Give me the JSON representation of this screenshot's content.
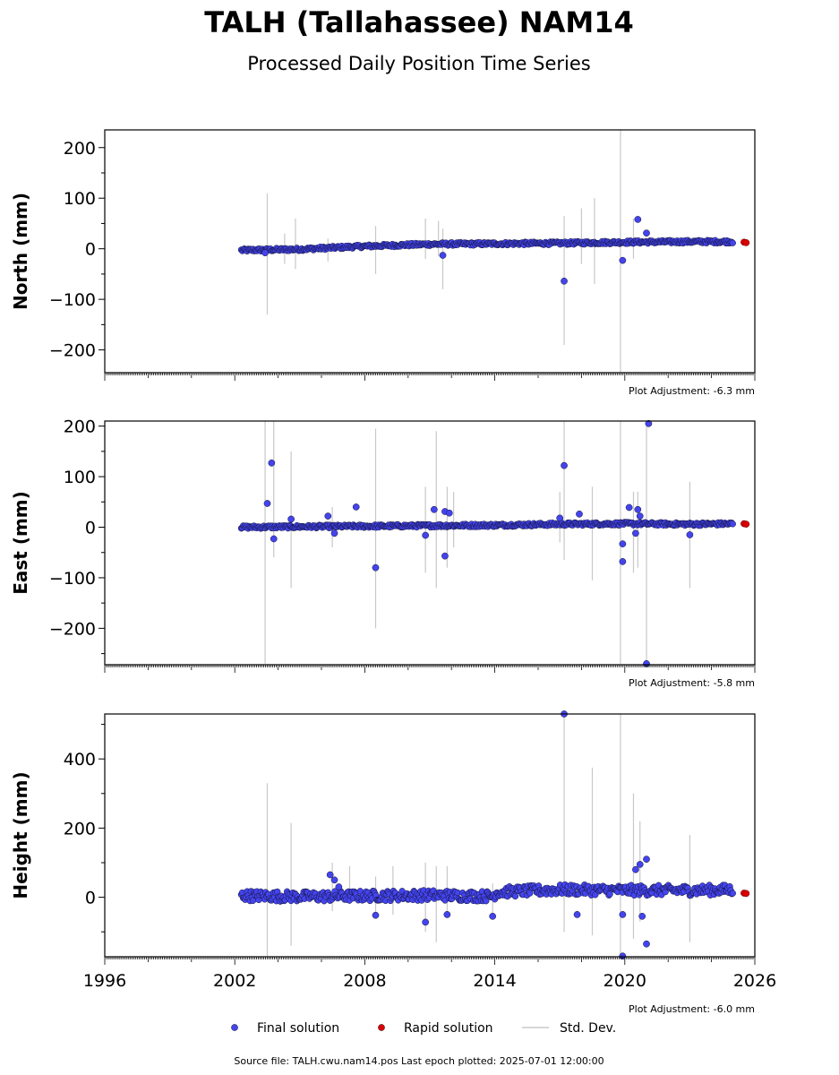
{
  "title": "TALH (Tallahassee) NAM14",
  "subtitle": "Processed Daily Position Time Series",
  "footer": "Source file: TALH.cwu.nam14.pos  Last epoch plotted: 2025-07-01 12:00:00",
  "legend": {
    "placement": "bottom-center",
    "items": [
      {
        "label": "Final solution",
        "color": "#4444ee",
        "kind": "dot"
      },
      {
        "label": "Rapid solution",
        "color": "#dd0000",
        "kind": "dot"
      },
      {
        "label": "Std. Dev.",
        "color": "#c8c8c8",
        "kind": "line"
      }
    ]
  },
  "colors": {
    "final": "#4444ee",
    "rapid": "#dd0000",
    "stddev": "#c8c8c8",
    "edge": "#111133"
  },
  "chart_data": [
    {
      "type": "scatter",
      "name": "north",
      "ylabel": "North (mm)",
      "adjustment": "Plot Adjustment: -6.3 mm",
      "xlim": [
        1996,
        2026
      ],
      "ylim": [
        -245,
        235
      ],
      "yticks": [
        -200,
        -100,
        0,
        100,
        200
      ],
      "trend": [
        [
          2002.3,
          -3
        ],
        [
          2005,
          -1
        ],
        [
          2008,
          5
        ],
        [
          2011,
          9
        ],
        [
          2014,
          10
        ],
        [
          2017,
          11
        ],
        [
          2020,
          13
        ],
        [
          2023,
          14
        ],
        [
          2025.4,
          14
        ]
      ],
      "scatter_amp": 3,
      "outliers": [
        [
          2017.2,
          -64
        ],
        [
          2019.9,
          -23
        ],
        [
          2020.6,
          58
        ],
        [
          2021.0,
          31
        ],
        [
          2011.6,
          -13
        ],
        [
          2003.4,
          -8
        ]
      ],
      "stddev_bars": [
        [
          2003.5,
          -130,
          110
        ],
        [
          2004.3,
          -30,
          30
        ],
        [
          2004.8,
          -40,
          60
        ],
        [
          2006.3,
          -25,
          20
        ],
        [
          2008.5,
          -50,
          45
        ],
        [
          2010.8,
          -20,
          60
        ],
        [
          2011.4,
          -15,
          55
        ],
        [
          2011.6,
          -80,
          40
        ],
        [
          2017.2,
          -190,
          65
        ],
        [
          2018.0,
          -30,
          80
        ],
        [
          2018.6,
          -70,
          100
        ],
        [
          2019.8,
          -245,
          235
        ],
        [
          2020.4,
          -20,
          60
        ]
      ],
      "rapid": [
        [
          2025.5,
          13
        ],
        [
          2025.6,
          12
        ]
      ],
      "final_end": [
        2025.0,
        14
      ]
    },
    {
      "type": "scatter",
      "name": "east",
      "ylabel": "East (mm)",
      "adjustment": "Plot Adjustment: -5.8 mm",
      "xlim": [
        1996,
        2026
      ],
      "ylim": [
        -272,
        210
      ],
      "yticks": [
        -200,
        -100,
        0,
        100,
        200
      ],
      "trend": [
        [
          2002.3,
          0
        ],
        [
          2005,
          1
        ],
        [
          2008,
          2
        ],
        [
          2011,
          3
        ],
        [
          2014,
          4
        ],
        [
          2017,
          6
        ],
        [
          2020,
          7
        ],
        [
          2023,
          6
        ],
        [
          2025.4,
          7
        ]
      ],
      "scatter_amp": 3,
      "outliers": [
        [
          2003.5,
          47
        ],
        [
          2003.7,
          127
        ],
        [
          2003.8,
          -23
        ],
        [
          2004.6,
          16
        ],
        [
          2006.3,
          22
        ],
        [
          2006.6,
          -12
        ],
        [
          2007.6,
          40
        ],
        [
          2008.5,
          -80
        ],
        [
          2010.8,
          -16
        ],
        [
          2011.2,
          35
        ],
        [
          2011.7,
          31
        ],
        [
          2011.9,
          28
        ],
        [
          2011.7,
          -57
        ],
        [
          2017.2,
          122
        ],
        [
          2017.9,
          26
        ],
        [
          2017.0,
          18
        ],
        [
          2019.9,
          -33
        ],
        [
          2019.9,
          -68
        ],
        [
          2020.2,
          39
        ],
        [
          2020.5,
          -12
        ],
        [
          2020.6,
          35
        ],
        [
          2020.7,
          22
        ],
        [
          2021.1,
          205
        ],
        [
          2021.0,
          -270
        ],
        [
          2023.0,
          -15
        ]
      ],
      "stddev_bars": [
        [
          2003.4,
          -270,
          210
        ],
        [
          2003.8,
          -60,
          210
        ],
        [
          2004.6,
          -120,
          150
        ],
        [
          2006.5,
          -40,
          40
        ],
        [
          2008.5,
          -200,
          195
        ],
        [
          2010.8,
          -90,
          80
        ],
        [
          2011.3,
          -120,
          190
        ],
        [
          2011.8,
          -80,
          80
        ],
        [
          2012.1,
          -40,
          70
        ],
        [
          2017.0,
          -30,
          70
        ],
        [
          2017.2,
          -65,
          210
        ],
        [
          2018.5,
          -105,
          80
        ],
        [
          2019.8,
          -270,
          210
        ],
        [
          2020.4,
          -90,
          70
        ],
        [
          2020.6,
          -80,
          70
        ],
        [
          2021.0,
          -270,
          210
        ],
        [
          2023.0,
          -120,
          90
        ]
      ],
      "rapid": [
        [
          2025.5,
          7
        ],
        [
          2025.6,
          6
        ]
      ],
      "final_end": [
        2025.0,
        7
      ]
    },
    {
      "type": "scatter",
      "name": "height",
      "ylabel": "Height (mm)",
      "adjustment": "Plot Adjustment: -6.0 mm",
      "xlim": [
        1996,
        2026
      ],
      "xticks": [
        1996,
        2002,
        2008,
        2014,
        2020,
        2026
      ],
      "ylim": [
        -172,
        530
      ],
      "yticks": [
        0,
        200,
        400
      ],
      "trend": [
        [
          2002.3,
          5
        ],
        [
          2005,
          2
        ],
        [
          2008,
          4
        ],
        [
          2011,
          6
        ],
        [
          2013.9,
          3
        ],
        [
          2014.1,
          15
        ],
        [
          2017,
          22
        ],
        [
          2020,
          20
        ],
        [
          2023,
          20
        ],
        [
          2025.4,
          22
        ]
      ],
      "scatter_amp": 15,
      "outliers": [
        [
          2006.4,
          65
        ],
        [
          2006.6,
          50
        ],
        [
          2006.8,
          30
        ],
        [
          2008.5,
          -52
        ],
        [
          2010.8,
          -72
        ],
        [
          2011.8,
          -50
        ],
        [
          2013.9,
          -55
        ],
        [
          2017.2,
          530
        ],
        [
          2017.8,
          -50
        ],
        [
          2019.9,
          -50
        ],
        [
          2019.9,
          -170
        ],
        [
          2020.5,
          80
        ],
        [
          2020.7,
          95
        ],
        [
          2021.0,
          110
        ],
        [
          2020.8,
          -55
        ],
        [
          2021.0,
          -135
        ]
      ],
      "stddev_bars": [
        [
          2003.5,
          -170,
          330
        ],
        [
          2004.6,
          -140,
          215
        ],
        [
          2006.5,
          -40,
          100
        ],
        [
          2007.3,
          -20,
          90
        ],
        [
          2008.5,
          -60,
          60
        ],
        [
          2009.3,
          -50,
          90
        ],
        [
          2010.8,
          -100,
          100
        ],
        [
          2011.3,
          -130,
          90
        ],
        [
          2011.8,
          -60,
          90
        ],
        [
          2013.9,
          -50,
          40
        ],
        [
          2017.2,
          -100,
          530
        ],
        [
          2018.5,
          -110,
          375
        ],
        [
          2019.8,
          -172,
          530
        ],
        [
          2020.4,
          -120,
          300
        ],
        [
          2020.7,
          -70,
          220
        ],
        [
          2023.0,
          -130,
          180
        ]
      ],
      "rapid": [
        [
          2025.5,
          12
        ],
        [
          2025.6,
          11
        ]
      ],
      "final_end": [
        2025.0,
        20
      ]
    }
  ]
}
